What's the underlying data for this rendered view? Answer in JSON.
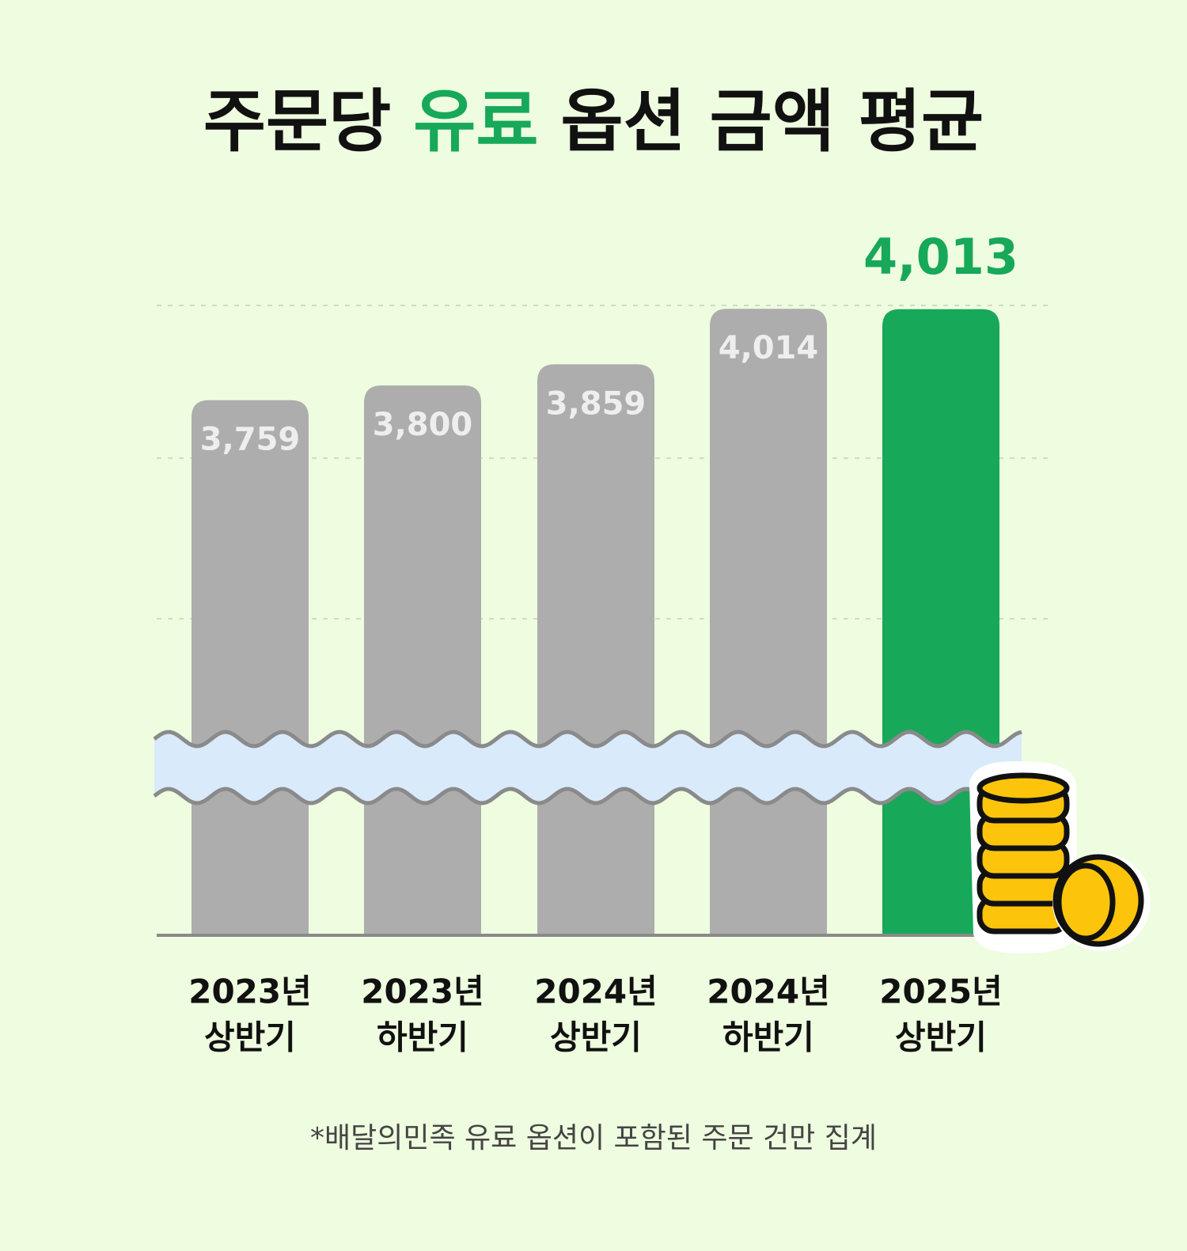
{
  "chart_data": {
    "type": "bar",
    "title": [
      "주문당",
      "유료",
      "옵션 금액 평균"
    ],
    "categories": [
      [
        "2023년",
        "상반기"
      ],
      [
        "2023년",
        "하반기"
      ],
      [
        "2024년",
        "상반기"
      ],
      [
        "2024년",
        "하반기"
      ],
      [
        "2025년",
        "상반기"
      ]
    ],
    "values": [
      3759,
      3800,
      3859,
      4014,
      4013
    ],
    "value_labels": [
      "3,759",
      "3,800",
      "3,859",
      "4,014",
      "4,013"
    ],
    "color": "#adadad",
    "highlight_color": "#17a85a",
    "highlight": 4,
    "ylim": [
      2800,
      4030
    ],
    "axis_break": true,
    "footnote": "*배달의민족 유료 옵션이 포함된 주문 건만 집계"
  }
}
